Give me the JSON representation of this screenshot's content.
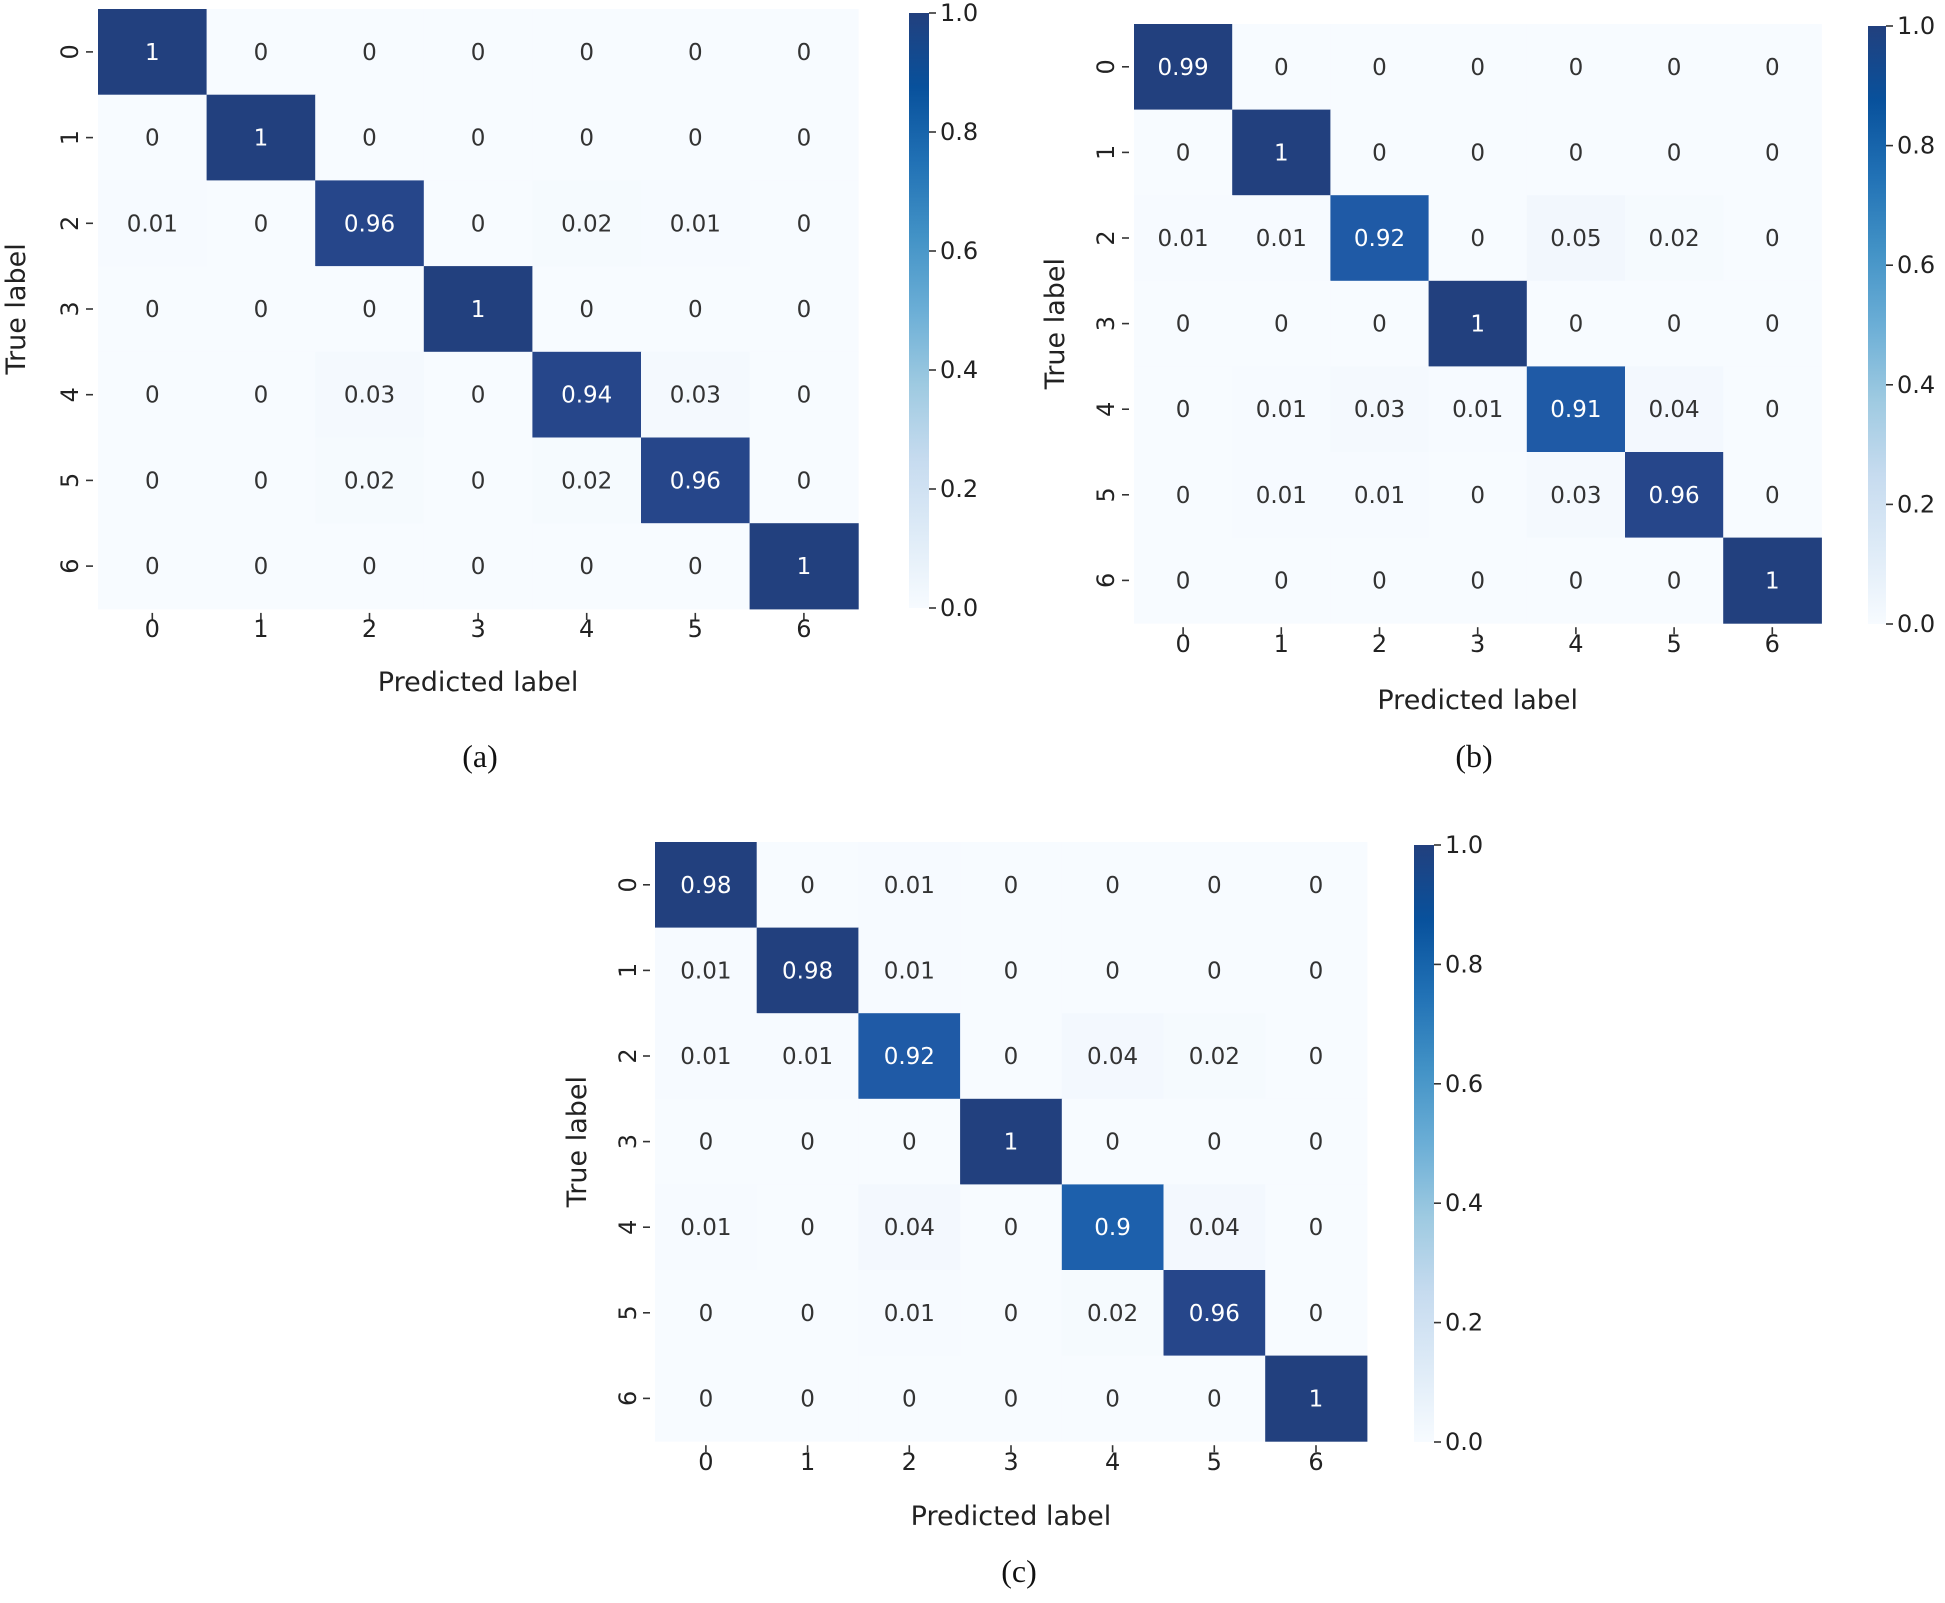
{
  "figure": {
    "panels": [
      {
        "caption": "(a)"
      },
      {
        "caption": "(b)"
      },
      {
        "caption": "(c)"
      }
    ]
  },
  "chart_data": [
    {
      "type": "heatmap",
      "caption": "(a)",
      "xlabel": "Predicted label",
      "ylabel": "True label",
      "x_categories": [
        "0",
        "1",
        "2",
        "3",
        "4",
        "5",
        "6"
      ],
      "y_categories": [
        "0",
        "1",
        "2",
        "3",
        "4",
        "5",
        "6"
      ],
      "values": [
        [
          1,
          0,
          0,
          0,
          0,
          0,
          0
        ],
        [
          0,
          1,
          0,
          0,
          0,
          0,
          0
        ],
        [
          0.01,
          0,
          0.96,
          0,
          0.02,
          0.01,
          0
        ],
        [
          0,
          0,
          0,
          1,
          0,
          0,
          0
        ],
        [
          0,
          0,
          0.03,
          0,
          0.94,
          0.03,
          0
        ],
        [
          0,
          0,
          0.02,
          0,
          0.02,
          0.96,
          0
        ],
        [
          0,
          0,
          0,
          0,
          0,
          0,
          1
        ]
      ],
      "colorbar": {
        "range": [
          0.0,
          1.0
        ],
        "ticks": [
          "0.0",
          "0.2",
          "0.4",
          "0.6",
          "0.8",
          "1.0"
        ]
      },
      "colormap": "Blues"
    },
    {
      "type": "heatmap",
      "caption": "(b)",
      "xlabel": "Predicted label",
      "ylabel": "True label",
      "x_categories": [
        "0",
        "1",
        "2",
        "3",
        "4",
        "5",
        "6"
      ],
      "y_categories": [
        "0",
        "1",
        "2",
        "3",
        "4",
        "5",
        "6"
      ],
      "values": [
        [
          0.99,
          0,
          0,
          0,
          0,
          0,
          0
        ],
        [
          0,
          1,
          0,
          0,
          0,
          0,
          0
        ],
        [
          0.01,
          0.01,
          0.92,
          0,
          0.05,
          0.02,
          0
        ],
        [
          0,
          0,
          0,
          1,
          0,
          0,
          0
        ],
        [
          0,
          0.01,
          0.03,
          0.01,
          0.91,
          0.04,
          0
        ],
        [
          0,
          0.01,
          0.01,
          0,
          0.03,
          0.96,
          0
        ],
        [
          0,
          0,
          0,
          0,
          0,
          0,
          1
        ]
      ],
      "colorbar": {
        "range": [
          0.0,
          1.0
        ],
        "ticks": [
          "0.0",
          "0.2",
          "0.4",
          "0.6",
          "0.8",
          "1.0"
        ]
      },
      "colormap": "Blues"
    },
    {
      "type": "heatmap",
      "caption": "(c)",
      "xlabel": "Predicted label",
      "ylabel": "True label",
      "x_categories": [
        "0",
        "1",
        "2",
        "3",
        "4",
        "5",
        "6"
      ],
      "y_categories": [
        "0",
        "1",
        "2",
        "3",
        "4",
        "5",
        "6"
      ],
      "values": [
        [
          0.98,
          0,
          0.01,
          0,
          0,
          0,
          0
        ],
        [
          0.01,
          0.98,
          0.01,
          0,
          0,
          0,
          0
        ],
        [
          0.01,
          0.01,
          0.92,
          0,
          0.04,
          0.02,
          0
        ],
        [
          0,
          0,
          0,
          1,
          0,
          0,
          0
        ],
        [
          0.01,
          0,
          0.04,
          0,
          0.9,
          0.04,
          0
        ],
        [
          0,
          0,
          0.01,
          0,
          0.02,
          0.96,
          0
        ],
        [
          0,
          0,
          0,
          0,
          0,
          0,
          1
        ]
      ],
      "colorbar": {
        "range": [
          0.0,
          1.0
        ],
        "ticks": [
          "0.0",
          "0.2",
          "0.4",
          "0.6",
          "0.8",
          "1.0"
        ]
      },
      "colormap": "Blues"
    }
  ]
}
